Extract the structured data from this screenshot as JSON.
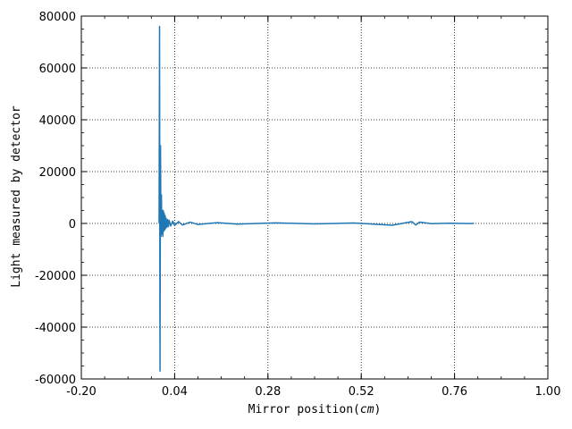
{
  "chart_data": {
    "type": "line",
    "title": "",
    "xlabel_prefix": "Mirror position(",
    "xlabel_unit": "cm",
    "xlabel_suffix": ")",
    "ylabel": "Light measured by detector",
    "xlim": [
      -0.2,
      1.0
    ],
    "ylim": [
      -60000,
      80000
    ],
    "xticks": [
      -0.2,
      0.04,
      0.28,
      0.52,
      0.76,
      1.0
    ],
    "xtick_labels": [
      "-0.20",
      "0.04",
      "0.28",
      "0.52",
      "0.76",
      "1.00"
    ],
    "yticks": [
      -60000,
      -40000,
      -20000,
      0,
      20000,
      40000,
      60000,
      80000
    ],
    "ytick_labels": [
      "-60000",
      "-40000",
      "-20000",
      "0",
      "20000",
      "40000",
      "60000",
      "80000"
    ],
    "grid": true,
    "grid_style": "dotted",
    "series": [
      {
        "color": "#1f77b4",
        "x": [
          0.0,
          0.0012,
          0.0024,
          0.0036,
          0.0048,
          0.006,
          0.0072,
          0.0084,
          0.0096,
          0.0108,
          0.012,
          0.0132,
          0.0144,
          0.0156,
          0.0168,
          0.018,
          0.02,
          0.022,
          0.024,
          0.026,
          0.03,
          0.035,
          0.04,
          0.05,
          0.06,
          0.08,
          0.1,
          0.15,
          0.2,
          0.3,
          0.4,
          0.5,
          0.6,
          0.65,
          0.66,
          0.67,
          0.7,
          0.75,
          0.8,
          0.81
        ],
        "y": [
          0,
          76000,
          -57000,
          30000,
          -5000,
          11000,
          -4000,
          5000,
          -5000,
          5000,
          -3000,
          4000,
          -2500,
          3000,
          -2000,
          2000,
          -1500,
          1500,
          -1200,
          1200,
          -1000,
          900,
          -800,
          700,
          -600,
          500,
          -400,
          300,
          -250,
          200,
          -150,
          150,
          -700,
          700,
          -600,
          500,
          -100,
          80,
          -50,
          0
        ]
      }
    ]
  }
}
